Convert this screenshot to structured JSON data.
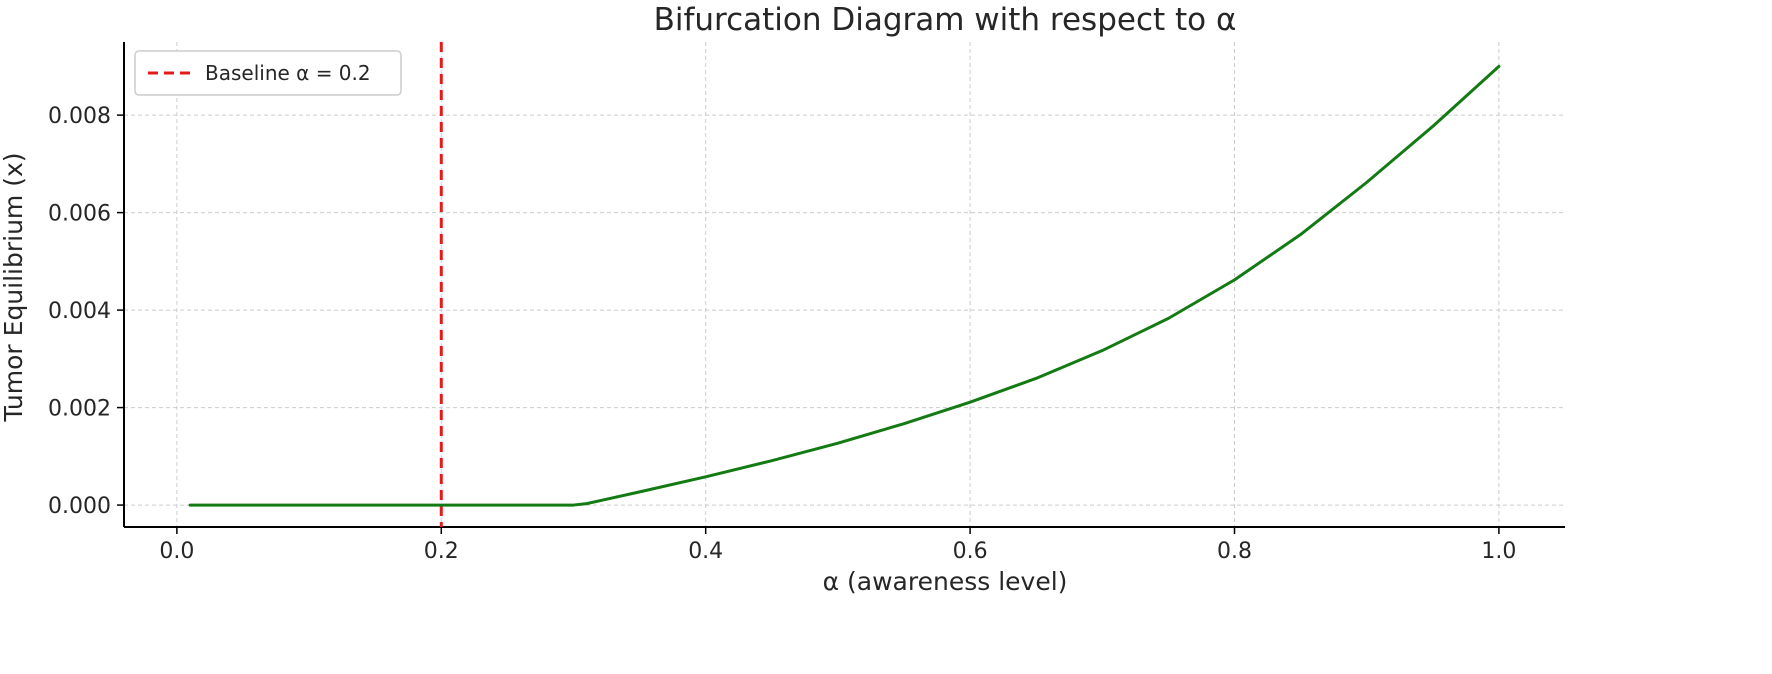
{
  "chart_data": {
    "type": "line",
    "title": "Bifurcation Diagram with respect to α",
    "xlabel": "α (awareness level)",
    "ylabel": "Tumor Equilibrium (x)",
    "xlim": [
      -0.04,
      1.05
    ],
    "ylim": [
      -0.00045,
      0.0095
    ],
    "xticks": [
      "0.0",
      "0.2",
      "0.4",
      "0.6",
      "0.8",
      "1.0"
    ],
    "xtick_values": [
      0.0,
      0.2,
      0.4,
      0.6,
      0.8,
      1.0
    ],
    "yticks": [
      "0.000",
      "0.002",
      "0.004",
      "0.006",
      "0.008"
    ],
    "ytick_values": [
      0.0,
      0.002,
      0.004,
      0.006,
      0.008
    ],
    "grid": true,
    "legend_position": "top-left",
    "series": [
      {
        "style": "solid",
        "color": "#147a14",
        "x": [
          0.01,
          0.05,
          0.1,
          0.15,
          0.2,
          0.25,
          0.3,
          0.31,
          0.32,
          0.35,
          0.4,
          0.45,
          0.5,
          0.55,
          0.6,
          0.65,
          0.7,
          0.75,
          0.8,
          0.85,
          0.9,
          0.95,
          1.0
        ],
        "y": [
          0.0,
          0.0,
          0.0,
          0.0,
          0.0,
          0.0,
          0.0,
          3e-05,
          9e-05,
          0.00027,
          0.00058,
          0.00091,
          0.00127,
          0.00167,
          0.00211,
          0.0026,
          0.00317,
          0.00383,
          0.00462,
          0.00555,
          0.00662,
          0.00777,
          0.009
        ]
      }
    ],
    "reference_lines": [
      {
        "name": "Baseline α = 0.2",
        "orientation": "vertical",
        "x": 0.2,
        "style": "dashed",
        "color": "#e41a1c"
      }
    ],
    "colors": {
      "grid": "#cccccc",
      "axis": "#000000",
      "text": "#262626"
    }
  }
}
